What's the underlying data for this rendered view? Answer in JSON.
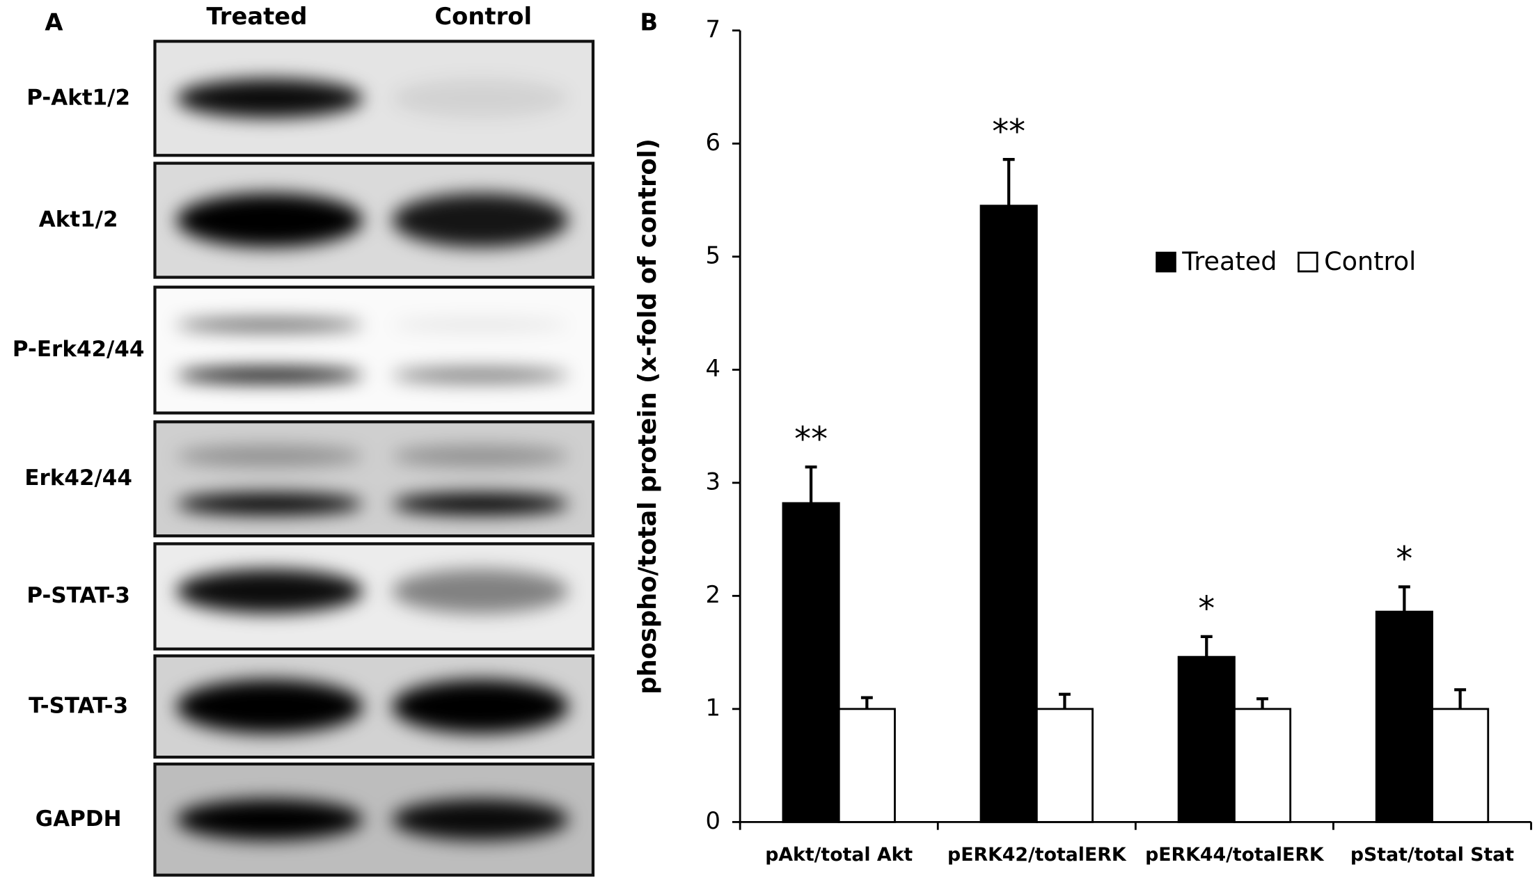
{
  "panel_labels": [
    "A",
    "B"
  ],
  "blot": {
    "lanes": [
      "Treated",
      "Control"
    ],
    "rows": [
      "P-Akt1/2",
      "Akt1/2",
      "P-Erk42/44",
      "Erk42/44",
      "P-STAT-3",
      "T-STAT-3",
      "GAPDH"
    ]
  },
  "chart_data": {
    "type": "bar",
    "y_label": "phospho/total protein (x-fold of control)",
    "categories": [
      "pAkt/total Akt",
      "pERK42/totalERK",
      "pERK44/totalERK",
      "pStat/total Stat"
    ],
    "series": [
      {
        "name": "Treated",
        "color": "#000000",
        "values": [
          2.82,
          5.45,
          1.46,
          1.86
        ],
        "errors": [
          0.32,
          0.41,
          0.18,
          0.22
        ]
      },
      {
        "name": "Control",
        "color": "#ffffff",
        "values": [
          1,
          1,
          1,
          1
        ],
        "errors": [
          0.1,
          0.13,
          0.09,
          0.17
        ]
      }
    ],
    "annotations": [
      "**",
      "**",
      "*",
      "*"
    ],
    "ylim": [
      0,
      7
    ],
    "yticks": [
      0,
      1,
      2,
      3,
      4,
      5,
      6,
      7
    ],
    "legend": "upper right"
  }
}
